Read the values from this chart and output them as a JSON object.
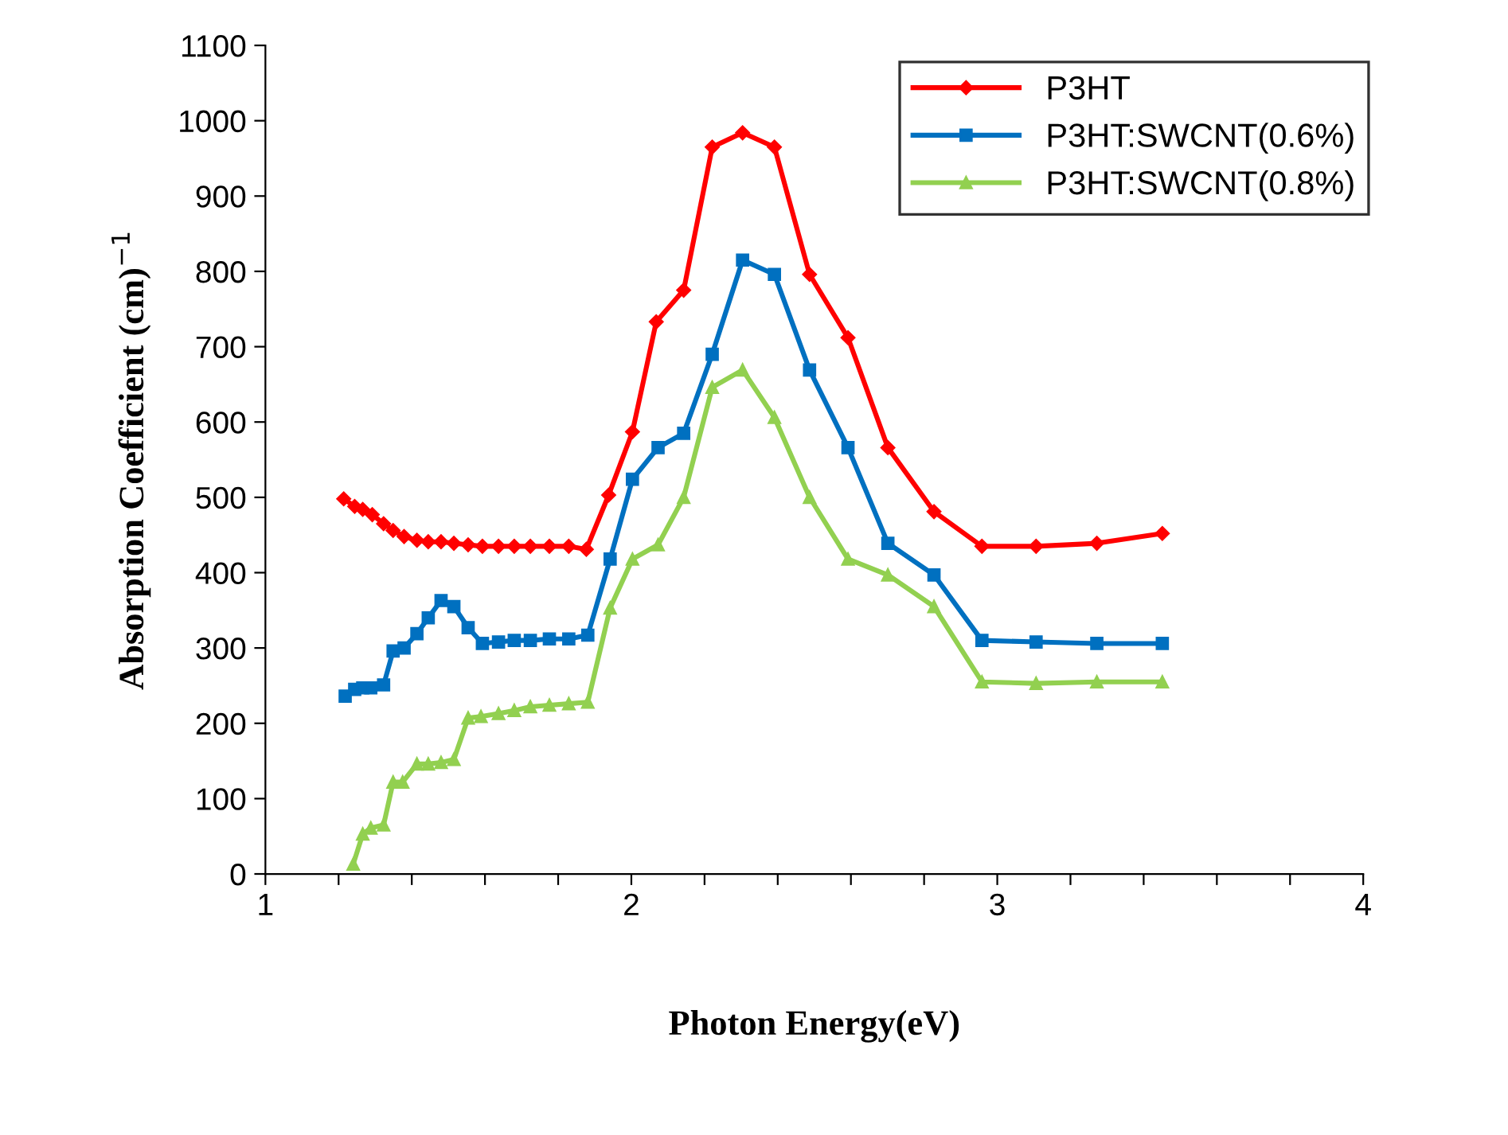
{
  "chart_data": {
    "type": "line",
    "xlabel": "Photon Energy(eV)",
    "ylabel": "Absorption Coefficient (cm)$^{−1}$",
    "xlim": [
      1,
      4
    ],
    "ylim": [
      0,
      1100
    ],
    "xticks": [
      1,
      {
        "value": 1.2,
        "label": null
      },
      {
        "value": 1.4,
        "label": null
      },
      {
        "value": 1.6,
        "label": null
      },
      {
        "value": 1.8,
        "label": null
      },
      2,
      {
        "value": 2.2,
        "label": null
      },
      {
        "value": 2.4,
        "label": null
      },
      {
        "value": 2.6,
        "label": null
      },
      {
        "value": 2.8,
        "label": null
      },
      3,
      {
        "value": 3.2,
        "label": null
      },
      {
        "value": 3.4,
        "label": null
      },
      {
        "value": 3.6,
        "label": null
      },
      {
        "value": 3.8,
        "label": null
      },
      4
    ],
    "yticks": [
      0,
      100,
      200,
      300,
      400,
      500,
      600,
      700,
      800,
      900,
      1000,
      1100
    ],
    "grid": false,
    "legend": "top right",
    "line_style": "solid",
    "series": [
      {
        "name": "P3HT",
        "color": "#ff0000",
        "marker": "diamond",
        "x": [
          1.214,
          1.244,
          1.266,
          1.292,
          1.323,
          1.349,
          1.379,
          1.414,
          1.445,
          1.48,
          1.515,
          1.554,
          1.593,
          1.637,
          1.68,
          1.724,
          1.776,
          1.829,
          1.877,
          1.938,
          2.003,
          2.068,
          2.143,
          2.221,
          2.304,
          2.391,
          2.487,
          2.592,
          2.701,
          2.827,
          2.958,
          3.106,
          3.272,
          3.451
        ],
        "values": [
          498,
          488,
          484,
          477,
          465,
          456,
          448,
          443,
          441,
          441,
          439,
          437,
          435,
          435,
          435,
          435,
          435,
          435,
          431,
          503,
          587,
          733,
          775,
          965,
          984,
          965,
          796,
          712,
          566,
          481,
          435,
          435,
          439,
          452
        ]
      },
      {
        "name": "P3HT:SWCNT(0.6%)",
        "color": "#0070c0",
        "marker": "square",
        "x": [
          1.218,
          1.244,
          1.266,
          1.288,
          1.323,
          1.349,
          1.379,
          1.414,
          1.445,
          1.48,
          1.515,
          1.554,
          1.593,
          1.637,
          1.68,
          1.724,
          1.776,
          1.829,
          1.881,
          1.942,
          2.003,
          2.073,
          2.143,
          2.221,
          2.304,
          2.391,
          2.487,
          2.592,
          2.701,
          2.827,
          2.958,
          3.106,
          3.272,
          3.451
        ],
        "values": [
          236,
          245,
          247,
          247,
          251,
          296,
          300,
          319,
          340,
          363,
          355,
          327,
          306,
          308,
          310,
          310,
          312,
          312,
          317,
          418,
          524,
          566,
          585,
          690,
          815,
          796,
          669,
          566,
          439,
          397,
          310,
          308,
          306,
          306
        ]
      },
      {
        "name": "P3HT:SWCNT(0.8%)",
        "color": "#92d050",
        "marker": "triangle",
        "x": [
          1.24,
          1.266,
          1.288,
          1.323,
          1.349,
          1.375,
          1.414,
          1.445,
          1.48,
          1.515,
          1.554,
          1.589,
          1.637,
          1.68,
          1.724,
          1.776,
          1.829,
          1.881,
          1.942,
          2.003,
          2.073,
          2.143,
          2.221,
          2.304,
          2.391,
          2.487,
          2.592,
          2.701,
          2.827,
          2.958,
          3.106,
          3.272,
          3.451
        ],
        "values": [
          13,
          53,
          61,
          65,
          122,
          122,
          146,
          146,
          148,
          152,
          207,
          209,
          213,
          217,
          222,
          224,
          226,
          228,
          353,
          418,
          437,
          500,
          646,
          669,
          606,
          500,
          418,
          397,
          355,
          255,
          253,
          255,
          255
        ]
      }
    ]
  }
}
